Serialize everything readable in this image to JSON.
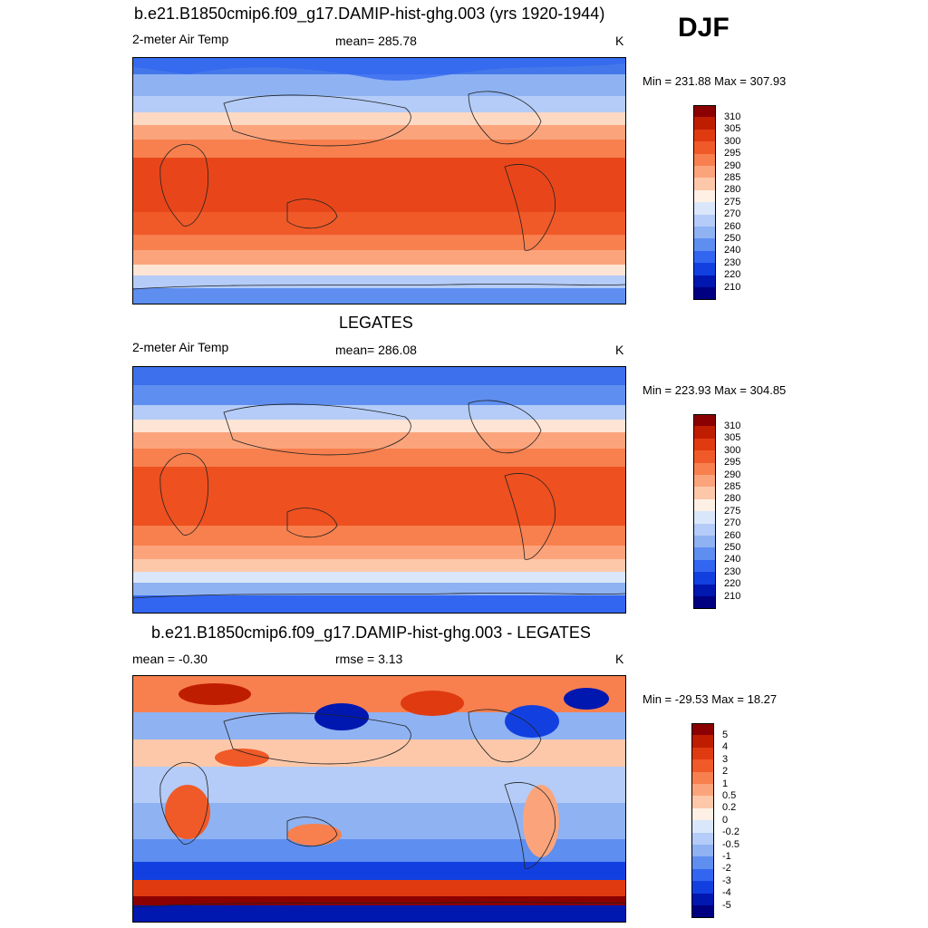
{
  "season": "DJF",
  "panels": [
    {
      "title": "b.e21.B1850cmip6.f09_g17.DAMIP-hist-ghg.003 (yrs 1920-1944)",
      "left_label": "2-meter Air Temp",
      "center_label": "mean= 285.78",
      "units": "K",
      "minmax": "Min = 231.88 Max = 307.93"
    },
    {
      "title": "LEGATES",
      "left_label": "2-meter Air Temp",
      "center_label": "mean= 286.08",
      "units": "K",
      "minmax": "Min = 223.93 Max = 304.85"
    },
    {
      "title": "b.e21.B1850cmip6.f09_g17.DAMIP-hist-ghg.003 - LEGATES",
      "left_label": "mean =  -0.30",
      "center_label": "rmse =   3.13",
      "units": "K",
      "minmax": "Min = -29.53 Max =  18.27"
    }
  ],
  "chart_data": [
    {
      "type": "heatmap",
      "title": "b.e21.B1850cmip6.f09_g17.DAMIP-hist-ghg.003 (yrs 1920-1944)",
      "variable": "2-meter Air Temp",
      "units": "K",
      "mean": 285.78,
      "min": 231.88,
      "max": 307.93,
      "colorbar_levels": [
        "310",
        "305",
        "300",
        "295",
        "290",
        "285",
        "280",
        "275",
        "270",
        "260",
        "250",
        "240",
        "230",
        "220",
        "210"
      ],
      "colorbar_colors": [
        "#8b0000",
        "#bf1d00",
        "#e03a10",
        "#f05a28",
        "#f7804e",
        "#fba47c",
        "#fdc8aa",
        "#fff0e6",
        "#dae7fb",
        "#b4ccf7",
        "#8fb2f2",
        "#5e8ef0",
        "#3366f0",
        "#1240e0",
        "#0017b0",
        "#000080"
      ]
    },
    {
      "type": "heatmap",
      "title": "LEGATES",
      "variable": "2-meter Air Temp",
      "units": "K",
      "mean": 286.08,
      "min": 223.93,
      "max": 304.85,
      "colorbar_levels": [
        "310",
        "305",
        "300",
        "295",
        "290",
        "285",
        "280",
        "275",
        "270",
        "260",
        "250",
        "240",
        "230",
        "220",
        "210"
      ],
      "colorbar_colors": [
        "#8b0000",
        "#bf1d00",
        "#e03a10",
        "#f05a28",
        "#f7804e",
        "#fba47c",
        "#fdc8aa",
        "#fff0e6",
        "#dae7fb",
        "#b4ccf7",
        "#8fb2f2",
        "#5e8ef0",
        "#3366f0",
        "#1240e0",
        "#0017b0",
        "#000080"
      ]
    },
    {
      "type": "heatmap",
      "title": "b.e21.B1850cmip6.f09_g17.DAMIP-hist-ghg.003 - LEGATES",
      "units": "K",
      "mean": -0.3,
      "rmse": 3.13,
      "min": -29.53,
      "max": 18.27,
      "colorbar_levels": [
        "5",
        "4",
        "3",
        "2",
        "1",
        "0.5",
        "0.2",
        "0",
        "-0.2",
        "-0.5",
        "-1",
        "-2",
        "-3",
        "-4",
        "-5"
      ],
      "colorbar_colors": [
        "#8b0000",
        "#bf1d00",
        "#e03a10",
        "#f05a28",
        "#f7804e",
        "#fba47c",
        "#fdc8aa",
        "#fff0e6",
        "#dae7fb",
        "#b4ccf7",
        "#8fb2f2",
        "#5e8ef0",
        "#3366f0",
        "#1240e0",
        "#0017b0",
        "#000080"
      ]
    }
  ]
}
